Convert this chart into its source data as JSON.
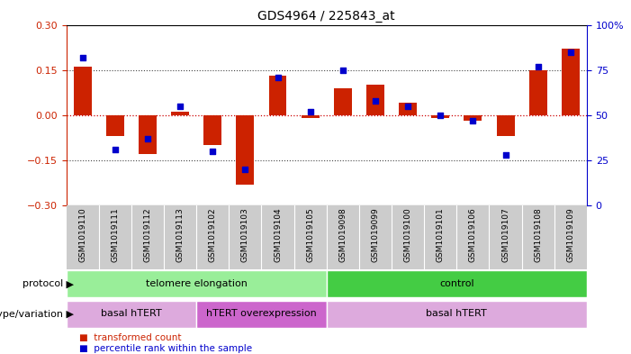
{
  "title": "GDS4964 / 225843_at",
  "samples": [
    "GSM1019110",
    "GSM1019111",
    "GSM1019112",
    "GSM1019113",
    "GSM1019102",
    "GSM1019103",
    "GSM1019104",
    "GSM1019105",
    "GSM1019098",
    "GSM1019099",
    "GSM1019100",
    "GSM1019101",
    "GSM1019106",
    "GSM1019107",
    "GSM1019108",
    "GSM1019109"
  ],
  "bar_values": [
    0.16,
    -0.07,
    -0.13,
    0.01,
    -0.1,
    -0.23,
    0.13,
    -0.01,
    0.09,
    0.1,
    0.04,
    -0.01,
    -0.02,
    -0.07,
    0.15,
    0.22
  ],
  "dot_values": [
    82,
    31,
    37,
    55,
    30,
    20,
    71,
    52,
    75,
    58,
    55,
    50,
    47,
    28,
    77,
    85
  ],
  "ylim": [
    -0.3,
    0.3
  ],
  "y2lim": [
    0,
    100
  ],
  "yticks": [
    -0.3,
    -0.15,
    0,
    0.15,
    0.3
  ],
  "y2ticks": [
    0,
    25,
    50,
    75,
    100
  ],
  "bar_color": "#cc2200",
  "dot_color": "#0000cc",
  "zero_line_color": "#cc0000",
  "dotted_line_color": "#444444",
  "protocol_groups": [
    {
      "label": "telomere elongation",
      "start": 0,
      "end": 8,
      "color": "#99ee99"
    },
    {
      "label": "control",
      "start": 8,
      "end": 16,
      "color": "#44cc44"
    }
  ],
  "genotype_groups": [
    {
      "label": "basal hTERT",
      "start": 0,
      "end": 4,
      "color": "#ddaadd"
    },
    {
      "label": "hTERT overexpression",
      "start": 4,
      "end": 8,
      "color": "#cc66cc"
    },
    {
      "label": "basal hTERT",
      "start": 8,
      "end": 16,
      "color": "#ddaadd"
    }
  ],
  "legend_items": [
    {
      "label": "transformed count",
      "color": "#cc2200"
    },
    {
      "label": "percentile rank within the sample",
      "color": "#0000cc"
    }
  ],
  "protocol_label": "protocol",
  "genotype_label": "genotype/variation",
  "bg_color": "#ffffff",
  "tick_bg_color": "#cccccc"
}
